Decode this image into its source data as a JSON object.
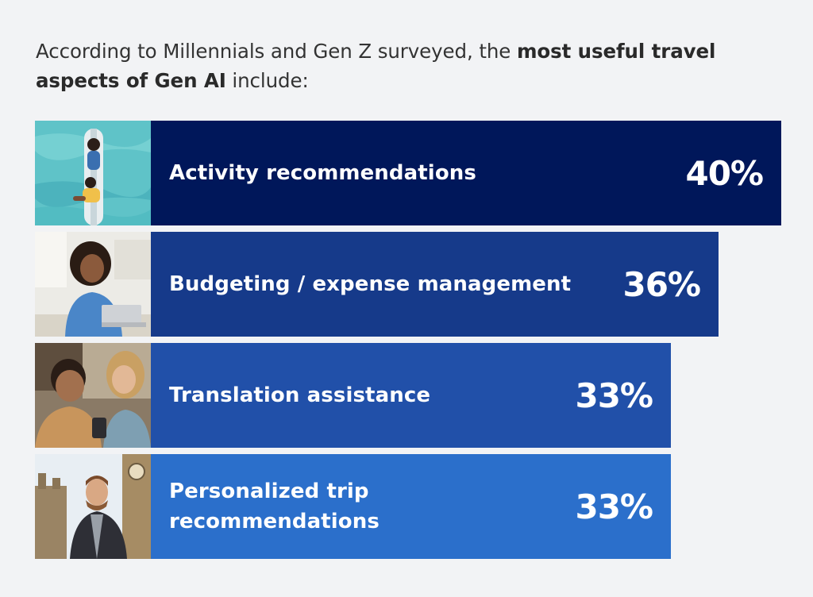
{
  "header": {
    "text_before": "According to Millennials and Gen Z surveyed, the ",
    "text_bold_1": "most useful travel aspects of Gen AI",
    "text_after": " include:"
  },
  "colors": {
    "background": "#f2f3f5",
    "bars": [
      "#00175a",
      "#163a8a",
      "#2150a9",
      "#2b6fcb"
    ],
    "text": "#ffffff"
  },
  "chart_data": {
    "type": "bar",
    "orientation": "horizontal",
    "categories": [
      "Activity recommendations",
      "Budgeting / expense management",
      "Translation assistance",
      "Personalized trip\nrecommendations"
    ],
    "values": [
      40,
      36,
      33,
      33
    ],
    "value_labels": [
      "40%",
      "36%",
      "33%",
      "33%"
    ],
    "unit": "%",
    "xlim": [
      0,
      40
    ],
    "grid": false,
    "legend": "none",
    "images": [
      "two-people-on-paddleboard-photo",
      "woman-at-laptop-photo",
      "couple-looking-at-phone-photo",
      "man-near-big-ben-photo"
    ]
  }
}
